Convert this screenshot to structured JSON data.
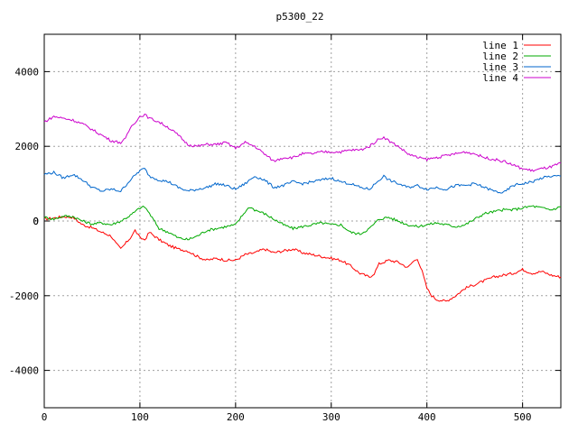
{
  "chart_data": {
    "type": "line",
    "title": "p5300_22",
    "xlabel": "",
    "ylabel": "",
    "xlim": [
      0,
      540
    ],
    "ylim": [
      -5000,
      5000
    ],
    "xticks": [
      0,
      100,
      200,
      300,
      400,
      500
    ],
    "yticks": [
      -4000,
      -2000,
      0,
      2000,
      4000
    ],
    "grid": true,
    "legend_position": "top-right",
    "series": [
      {
        "name": "line 1",
        "color": "#ff0000",
        "points": [
          [
            0,
            50
          ],
          [
            10,
            80
          ],
          [
            20,
            120
          ],
          [
            30,
            100
          ],
          [
            40,
            -100
          ],
          [
            50,
            -180
          ],
          [
            60,
            -300
          ],
          [
            70,
            -400
          ],
          [
            75,
            -600
          ],
          [
            80,
            -750
          ],
          [
            90,
            -450
          ],
          [
            95,
            -250
          ],
          [
            100,
            -450
          ],
          [
            105,
            -500
          ],
          [
            110,
            -300
          ],
          [
            120,
            -500
          ],
          [
            130,
            -650
          ],
          [
            140,
            -750
          ],
          [
            150,
            -800
          ],
          [
            160,
            -950
          ],
          [
            170,
            -1050
          ],
          [
            180,
            -1000
          ],
          [
            190,
            -1050
          ],
          [
            200,
            -1050
          ],
          [
            210,
            -900
          ],
          [
            220,
            -850
          ],
          [
            230,
            -750
          ],
          [
            240,
            -850
          ],
          [
            250,
            -800
          ],
          [
            260,
            -750
          ],
          [
            270,
            -850
          ],
          [
            280,
            -900
          ],
          [
            290,
            -950
          ],
          [
            300,
            -1000
          ],
          [
            310,
            -1050
          ],
          [
            320,
            -1200
          ],
          [
            330,
            -1400
          ],
          [
            340,
            -1500
          ],
          [
            345,
            -1400
          ],
          [
            350,
            -1150
          ],
          [
            360,
            -1050
          ],
          [
            370,
            -1100
          ],
          [
            380,
            -1250
          ],
          [
            385,
            -1100
          ],
          [
            390,
            -1000
          ],
          [
            395,
            -1350
          ],
          [
            400,
            -1800
          ],
          [
            405,
            -2000
          ],
          [
            410,
            -2100
          ],
          [
            420,
            -2150
          ],
          [
            430,
            -2000
          ],
          [
            440,
            -1800
          ],
          [
            450,
            -1700
          ],
          [
            460,
            -1600
          ],
          [
            470,
            -1500
          ],
          [
            480,
            -1450
          ],
          [
            490,
            -1400
          ],
          [
            500,
            -1300
          ],
          [
            510,
            -1400
          ],
          [
            520,
            -1350
          ],
          [
            530,
            -1450
          ],
          [
            540,
            -1500
          ]
        ]
      },
      {
        "name": "line 2",
        "color": "#00aa00",
        "points": [
          [
            0,
            100
          ],
          [
            10,
            50
          ],
          [
            20,
            130
          ],
          [
            30,
            120
          ],
          [
            40,
            0
          ],
          [
            50,
            -80
          ],
          [
            60,
            -50
          ],
          [
            70,
            -100
          ],
          [
            80,
            0
          ],
          [
            90,
            150
          ],
          [
            100,
            350
          ],
          [
            105,
            380
          ],
          [
            110,
            200
          ],
          [
            120,
            -200
          ],
          [
            130,
            -300
          ],
          [
            140,
            -450
          ],
          [
            150,
            -500
          ],
          [
            160,
            -400
          ],
          [
            170,
            -250
          ],
          [
            180,
            -200
          ],
          [
            190,
            -150
          ],
          [
            200,
            -100
          ],
          [
            210,
            250
          ],
          [
            215,
            380
          ],
          [
            220,
            300
          ],
          [
            230,
            200
          ],
          [
            240,
            50
          ],
          [
            250,
            -100
          ],
          [
            260,
            -200
          ],
          [
            270,
            -150
          ],
          [
            280,
            -100
          ],
          [
            290,
            -50
          ],
          [
            300,
            -100
          ],
          [
            310,
            -100
          ],
          [
            320,
            -300
          ],
          [
            330,
            -350
          ],
          [
            340,
            -200
          ],
          [
            350,
            50
          ],
          [
            360,
            100
          ],
          [
            370,
            0
          ],
          [
            380,
            -100
          ],
          [
            390,
            -150
          ],
          [
            400,
            -100
          ],
          [
            410,
            -50
          ],
          [
            420,
            -100
          ],
          [
            430,
            -150
          ],
          [
            440,
            -100
          ],
          [
            450,
            50
          ],
          [
            460,
            200
          ],
          [
            470,
            250
          ],
          [
            480,
            300
          ],
          [
            490,
            300
          ],
          [
            500,
            350
          ],
          [
            510,
            400
          ],
          [
            520,
            350
          ],
          [
            530,
            300
          ],
          [
            540,
            380
          ]
        ]
      },
      {
        "name": "line 3",
        "color": "#0066cc",
        "points": [
          [
            0,
            1250
          ],
          [
            10,
            1300
          ],
          [
            20,
            1150
          ],
          [
            30,
            1250
          ],
          [
            40,
            1100
          ],
          [
            50,
            900
          ],
          [
            60,
            800
          ],
          [
            70,
            850
          ],
          [
            80,
            800
          ],
          [
            90,
            1100
          ],
          [
            100,
            1350
          ],
          [
            105,
            1400
          ],
          [
            110,
            1200
          ],
          [
            120,
            1100
          ],
          [
            130,
            1050
          ],
          [
            140,
            900
          ],
          [
            150,
            800
          ],
          [
            160,
            850
          ],
          [
            170,
            900
          ],
          [
            180,
            1000
          ],
          [
            190,
            950
          ],
          [
            200,
            850
          ],
          [
            210,
            1000
          ],
          [
            220,
            1200
          ],
          [
            230,
            1100
          ],
          [
            240,
            900
          ],
          [
            250,
            950
          ],
          [
            260,
            1050
          ],
          [
            270,
            1000
          ],
          [
            280,
            1050
          ],
          [
            290,
            1100
          ],
          [
            300,
            1150
          ],
          [
            310,
            1050
          ],
          [
            320,
            1000
          ],
          [
            330,
            900
          ],
          [
            340,
            850
          ],
          [
            350,
            1100
          ],
          [
            355,
            1200
          ],
          [
            360,
            1100
          ],
          [
            370,
            1000
          ],
          [
            380,
            900
          ],
          [
            390,
            950
          ],
          [
            400,
            850
          ],
          [
            410,
            900
          ],
          [
            420,
            850
          ],
          [
            430,
            950
          ],
          [
            440,
            950
          ],
          [
            450,
            1000
          ],
          [
            460,
            900
          ],
          [
            470,
            800
          ],
          [
            480,
            750
          ],
          [
            490,
            950
          ],
          [
            500,
            1000
          ],
          [
            510,
            1050
          ],
          [
            520,
            1150
          ],
          [
            530,
            1200
          ],
          [
            540,
            1200
          ]
        ]
      },
      {
        "name": "line 4",
        "color": "#cc00cc",
        "points": [
          [
            0,
            2650
          ],
          [
            10,
            2800
          ],
          [
            20,
            2750
          ],
          [
            30,
            2700
          ],
          [
            40,
            2600
          ],
          [
            50,
            2450
          ],
          [
            60,
            2300
          ],
          [
            70,
            2150
          ],
          [
            80,
            2100
          ],
          [
            85,
            2200
          ],
          [
            90,
            2500
          ],
          [
            100,
            2800
          ],
          [
            105,
            2850
          ],
          [
            110,
            2750
          ],
          [
            120,
            2650
          ],
          [
            130,
            2500
          ],
          [
            140,
            2300
          ],
          [
            150,
            2050
          ],
          [
            160,
            2000
          ],
          [
            170,
            2050
          ],
          [
            180,
            2050
          ],
          [
            190,
            2100
          ],
          [
            200,
            1950
          ],
          [
            210,
            2100
          ],
          [
            220,
            2000
          ],
          [
            230,
            1800
          ],
          [
            240,
            1600
          ],
          [
            250,
            1700
          ],
          [
            260,
            1700
          ],
          [
            270,
            1800
          ],
          [
            280,
            1800
          ],
          [
            290,
            1850
          ],
          [
            300,
            1850
          ],
          [
            310,
            1850
          ],
          [
            320,
            1900
          ],
          [
            330,
            1900
          ],
          [
            340,
            2000
          ],
          [
            350,
            2200
          ],
          [
            355,
            2250
          ],
          [
            360,
            2150
          ],
          [
            370,
            2000
          ],
          [
            380,
            1800
          ],
          [
            390,
            1700
          ],
          [
            400,
            1650
          ],
          [
            410,
            1700
          ],
          [
            420,
            1750
          ],
          [
            430,
            1800
          ],
          [
            440,
            1850
          ],
          [
            450,
            1800
          ],
          [
            460,
            1700
          ],
          [
            470,
            1650
          ],
          [
            480,
            1600
          ],
          [
            490,
            1500
          ],
          [
            500,
            1400
          ],
          [
            510,
            1350
          ],
          [
            520,
            1400
          ],
          [
            530,
            1450
          ],
          [
            540,
            1550
          ]
        ]
      }
    ]
  }
}
